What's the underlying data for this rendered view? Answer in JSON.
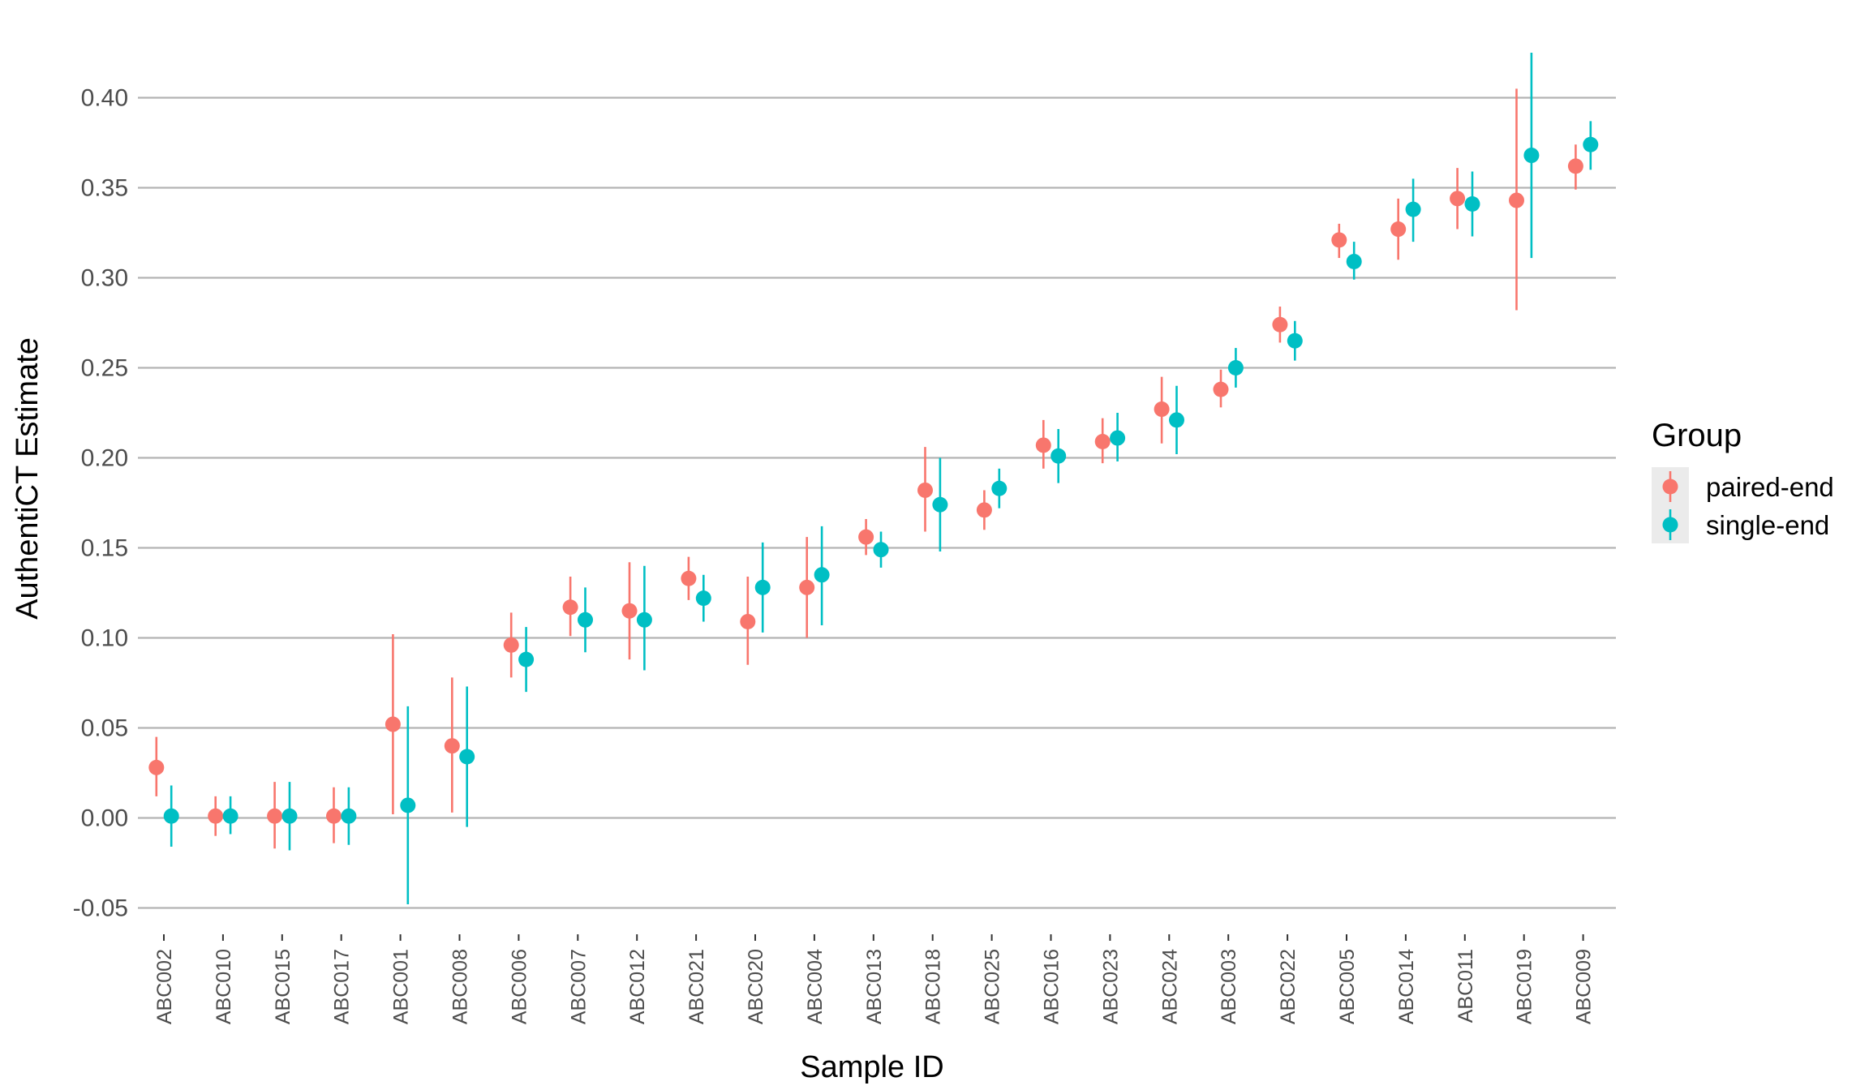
{
  "chart_data": {
    "type": "scatter",
    "subtype": "point-range (dodged points with error bars)",
    "title": "",
    "xlabel": "Sample ID",
    "ylabel": "AuthentiCT Estimate",
    "ylim": [
      -0.07,
      0.43
    ],
    "yticks": [
      -0.05,
      0.0,
      0.05,
      0.1,
      0.15,
      0.2,
      0.25,
      0.3,
      0.35,
      0.4
    ],
    "ytick_labels": [
      "-0.05",
      "0.00",
      "0.05",
      "0.10",
      "0.15",
      "0.20",
      "0.25",
      "0.30",
      "0.35",
      "0.40"
    ],
    "grid": "horizontal major gridlines",
    "legend": {
      "title": "Group",
      "position": "right",
      "entries": [
        "paired-end",
        "single-end"
      ]
    },
    "categories": [
      "ABC002",
      "ABC010",
      "ABC015",
      "ABC017",
      "ABC001",
      "ABC008",
      "ABC006",
      "ABC007",
      "ABC012",
      "ABC021",
      "ABC020",
      "ABC004",
      "ABC013",
      "ABC018",
      "ABC025",
      "ABC016",
      "ABC023",
      "ABC024",
      "ABC003",
      "ABC022",
      "ABC005",
      "ABC014",
      "ABC011",
      "ABC019",
      "ABC009"
    ],
    "series": [
      {
        "name": "paired-end",
        "color": "#F8766D",
        "values": [
          0.028,
          0.001,
          0.001,
          0.001,
          0.052,
          0.04,
          0.096,
          0.117,
          0.115,
          0.133,
          0.109,
          0.128,
          0.156,
          0.182,
          0.171,
          0.207,
          0.209,
          0.227,
          0.238,
          0.274,
          0.321,
          0.327,
          0.344,
          0.343,
          0.362
        ],
        "lower": [
          0.012,
          -0.01,
          -0.017,
          -0.014,
          0.002,
          0.003,
          0.078,
          0.101,
          0.088,
          0.121,
          0.085,
          0.1,
          0.146,
          0.159,
          0.16,
          0.194,
          0.197,
          0.208,
          0.228,
          0.264,
          0.311,
          0.31,
          0.327,
          0.282,
          0.349
        ],
        "upper": [
          0.045,
          0.012,
          0.02,
          0.017,
          0.102,
          0.078,
          0.114,
          0.134,
          0.142,
          0.145,
          0.134,
          0.156,
          0.166,
          0.206,
          0.182,
          0.221,
          0.222,
          0.245,
          0.249,
          0.284,
          0.33,
          0.344,
          0.361,
          0.405,
          0.374
        ]
      },
      {
        "name": "single-end",
        "color": "#00BFC4",
        "values": [
          0.001,
          0.001,
          0.001,
          0.001,
          0.007,
          0.034,
          0.088,
          0.11,
          0.11,
          0.122,
          0.128,
          0.135,
          0.149,
          0.174,
          0.183,
          0.201,
          0.211,
          0.221,
          0.25,
          0.265,
          0.309,
          0.338,
          0.341,
          0.368,
          0.374
        ],
        "lower": [
          -0.016,
          -0.009,
          -0.018,
          -0.015,
          -0.048,
          -0.005,
          0.07,
          0.092,
          0.082,
          0.109,
          0.103,
          0.107,
          0.139,
          0.148,
          0.172,
          0.186,
          0.198,
          0.202,
          0.239,
          0.254,
          0.299,
          0.32,
          0.323,
          0.311,
          0.36
        ],
        "upper": [
          0.018,
          0.012,
          0.02,
          0.017,
          0.062,
          0.073,
          0.106,
          0.128,
          0.14,
          0.135,
          0.153,
          0.162,
          0.159,
          0.2,
          0.194,
          0.216,
          0.225,
          0.24,
          0.261,
          0.276,
          0.32,
          0.355,
          0.359,
          0.425,
          0.387
        ]
      }
    ]
  }
}
